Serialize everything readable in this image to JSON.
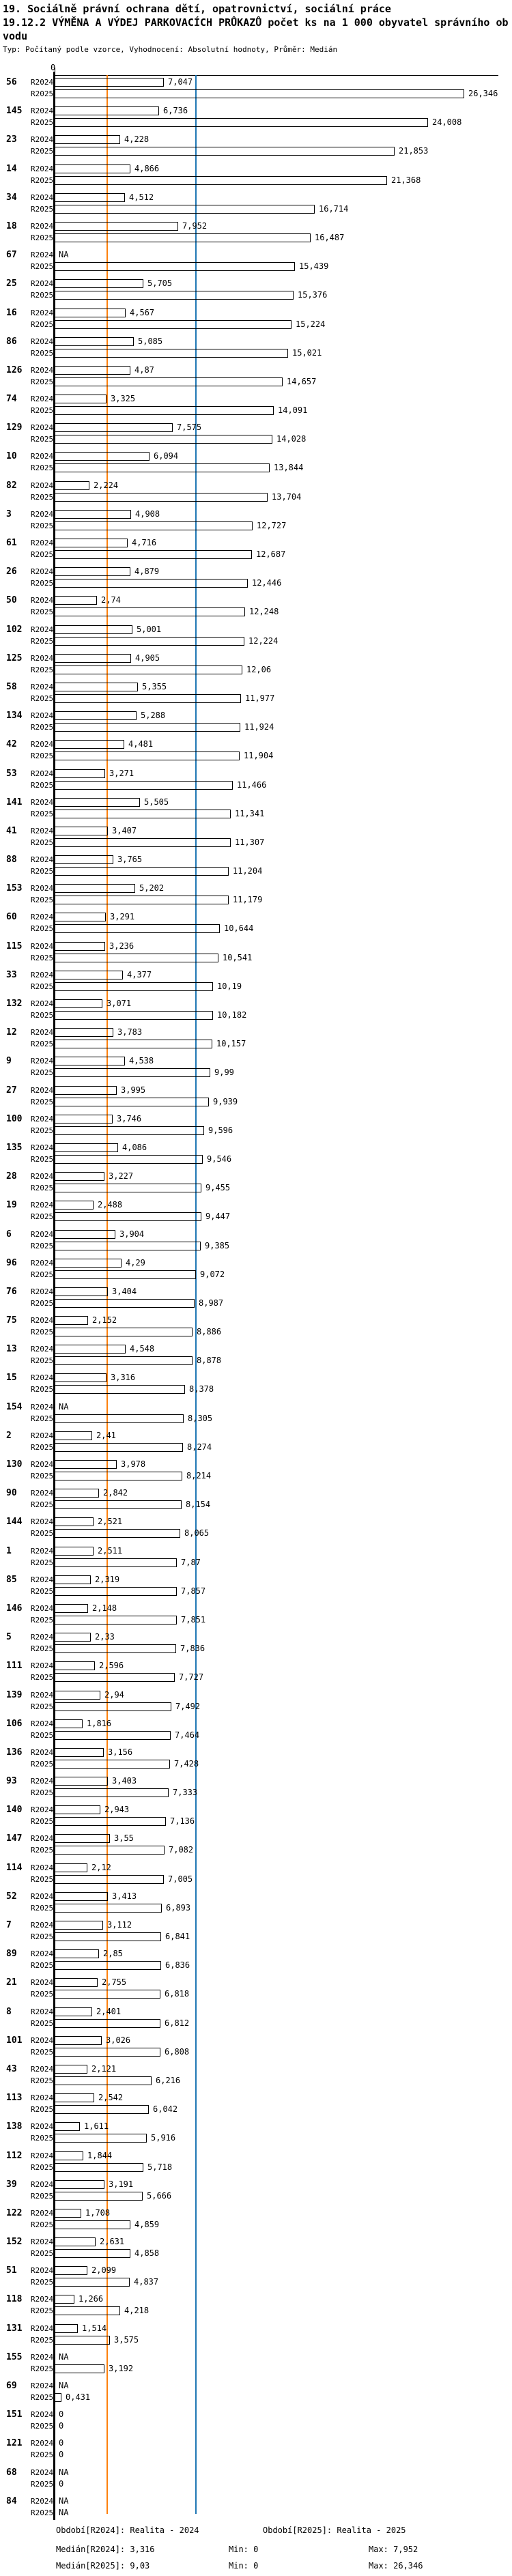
{
  "header": {
    "title_line1": "19. Sociálně právní ochrana dětí, opatrovnictví, sociální práce",
    "title_line2": "19.12.2 VÝMĚNA A VÝDEJ PARKOVACÍCH PRŮKAZŮ počet ks na 1 000 obyvatel správního obvodu",
    "meta": "Typ: Počítaný podle vzorce, Vyhodnocení: Absolutní hodnoty, Průměr: Medián"
  },
  "chart_data": {
    "type": "bar",
    "orientation": "horizontal",
    "axis_zero_label": "0",
    "xlim": [
      0,
      28.5
    ],
    "grid": "median-lines-only",
    "series_labels": [
      "R2024",
      "R2025"
    ],
    "colors": {
      "r2024": "#FD810D",
      "r2025": "#1F77B4"
    },
    "medians": {
      "r2024": 3.316,
      "r2025": 9.03
    },
    "na_text": "NA",
    "rows": [
      {
        "id": "56",
        "r2024": "7,047",
        "r2025": "26,346"
      },
      {
        "id": "145",
        "r2024": "6,736",
        "r2025": "24,008"
      },
      {
        "id": "23",
        "r2024": "4,228",
        "r2025": "21,853"
      },
      {
        "id": "14",
        "r2024": "4,866",
        "r2025": "21,368"
      },
      {
        "id": "34",
        "r2024": "4,512",
        "r2025": "16,714"
      },
      {
        "id": "18",
        "r2024": "7,952",
        "r2025": "16,487"
      },
      {
        "id": "67",
        "r2024": "NA",
        "r2025": "15,439"
      },
      {
        "id": "25",
        "r2024": "5,705",
        "r2025": "15,376"
      },
      {
        "id": "16",
        "r2024": "4,567",
        "r2025": "15,224"
      },
      {
        "id": "86",
        "r2024": "5,085",
        "r2025": "15,021"
      },
      {
        "id": "126",
        "r2024": "4,87",
        "r2025": "14,657"
      },
      {
        "id": "74",
        "r2024": "3,325",
        "r2025": "14,091"
      },
      {
        "id": "129",
        "r2024": "7,575",
        "r2025": "14,028"
      },
      {
        "id": "10",
        "r2024": "6,094",
        "r2025": "13,844"
      },
      {
        "id": "82",
        "r2024": "2,224",
        "r2025": "13,704"
      },
      {
        "id": "3",
        "r2024": "4,908",
        "r2025": "12,727"
      },
      {
        "id": "61",
        "r2024": "4,716",
        "r2025": "12,687"
      },
      {
        "id": "26",
        "r2024": "4,879",
        "r2025": "12,446"
      },
      {
        "id": "50",
        "r2024": "2,74",
        "r2025": "12,248"
      },
      {
        "id": "102",
        "r2024": "5,001",
        "r2025": "12,224"
      },
      {
        "id": "125",
        "r2024": "4,905",
        "r2025": "12,06"
      },
      {
        "id": "58",
        "r2024": "5,355",
        "r2025": "11,977"
      },
      {
        "id": "134",
        "r2024": "5,288",
        "r2025": "11,924"
      },
      {
        "id": "42",
        "r2024": "4,481",
        "r2025": "11,904"
      },
      {
        "id": "53",
        "r2024": "3,271",
        "r2025": "11,466"
      },
      {
        "id": "141",
        "r2024": "5,505",
        "r2025": "11,341"
      },
      {
        "id": "41",
        "r2024": "3,407",
        "r2025": "11,307"
      },
      {
        "id": "88",
        "r2024": "3,765",
        "r2025": "11,204"
      },
      {
        "id": "153",
        "r2024": "5,202",
        "r2025": "11,179"
      },
      {
        "id": "60",
        "r2024": "3,291",
        "r2025": "10,644"
      },
      {
        "id": "115",
        "r2024": "3,236",
        "r2025": "10,541"
      },
      {
        "id": "33",
        "r2024": "4,377",
        "r2025": "10,19"
      },
      {
        "id": "132",
        "r2024": "3,071",
        "r2025": "10,182"
      },
      {
        "id": "12",
        "r2024": "3,783",
        "r2025": "10,157"
      },
      {
        "id": "9",
        "r2024": "4,538",
        "r2025": "9,99"
      },
      {
        "id": "27",
        "r2024": "3,995",
        "r2025": "9,939"
      },
      {
        "id": "100",
        "r2024": "3,746",
        "r2025": "9,596"
      },
      {
        "id": "135",
        "r2024": "4,086",
        "r2025": "9,546"
      },
      {
        "id": "28",
        "r2024": "3,227",
        "r2025": "9,455"
      },
      {
        "id": "19",
        "r2024": "2,488",
        "r2025": "9,447"
      },
      {
        "id": "6",
        "r2024": "3,904",
        "r2025": "9,385"
      },
      {
        "id": "96",
        "r2024": "4,29",
        "r2025": "9,072"
      },
      {
        "id": "76",
        "r2024": "3,404",
        "r2025": "8,987"
      },
      {
        "id": "75",
        "r2024": "2,152",
        "r2025": "8,886"
      },
      {
        "id": "13",
        "r2024": "4,548",
        "r2025": "8,878"
      },
      {
        "id": "15",
        "r2024": "3,316",
        "r2025": "8,378"
      },
      {
        "id": "154",
        "r2024": "NA",
        "r2025": "8,305"
      },
      {
        "id": "2",
        "r2024": "2,41",
        "r2025": "8,274"
      },
      {
        "id": "130",
        "r2024": "3,978",
        "r2025": "8,214"
      },
      {
        "id": "90",
        "r2024": "2,842",
        "r2025": "8,154"
      },
      {
        "id": "144",
        "r2024": "2,521",
        "r2025": "8,065"
      },
      {
        "id": "1",
        "r2024": "2,511",
        "r2025": "7,87"
      },
      {
        "id": "85",
        "r2024": "2,319",
        "r2025": "7,857"
      },
      {
        "id": "146",
        "r2024": "2,148",
        "r2025": "7,851"
      },
      {
        "id": "5",
        "r2024": "2,33",
        "r2025": "7,836"
      },
      {
        "id": "111",
        "r2024": "2,596",
        "r2025": "7,727"
      },
      {
        "id": "139",
        "r2024": "2,94",
        "r2025": "7,492"
      },
      {
        "id": "106",
        "r2024": "1,816",
        "r2025": "7,464"
      },
      {
        "id": "136",
        "r2024": "3,156",
        "r2025": "7,428"
      },
      {
        "id": "93",
        "r2024": "3,403",
        "r2025": "7,333"
      },
      {
        "id": "140",
        "r2024": "2,943",
        "r2025": "7,136"
      },
      {
        "id": "147",
        "r2024": "3,55",
        "r2025": "7,082"
      },
      {
        "id": "114",
        "r2024": "2,12",
        "r2025": "7,005"
      },
      {
        "id": "52",
        "r2024": "3,413",
        "r2025": "6,893"
      },
      {
        "id": "7",
        "r2024": "3,112",
        "r2025": "6,841"
      },
      {
        "id": "89",
        "r2024": "2,85",
        "r2025": "6,836"
      },
      {
        "id": "21",
        "r2024": "2,755",
        "r2025": "6,818"
      },
      {
        "id": "8",
        "r2024": "2,401",
        "r2025": "6,812"
      },
      {
        "id": "101",
        "r2024": "3,026",
        "r2025": "6,808"
      },
      {
        "id": "43",
        "r2024": "2,121",
        "r2025": "6,216"
      },
      {
        "id": "113",
        "r2024": "2,542",
        "r2025": "6,042"
      },
      {
        "id": "138",
        "r2024": "1,611",
        "r2025": "5,916"
      },
      {
        "id": "112",
        "r2024": "1,844",
        "r2025": "5,718"
      },
      {
        "id": "39",
        "r2024": "3,191",
        "r2025": "5,666"
      },
      {
        "id": "122",
        "r2024": "1,708",
        "r2025": "4,859"
      },
      {
        "id": "152",
        "r2024": "2,631",
        "r2025": "4,858"
      },
      {
        "id": "51",
        "r2024": "2,099",
        "r2025": "4,837"
      },
      {
        "id": "118",
        "r2024": "1,266",
        "r2025": "4,218"
      },
      {
        "id": "131",
        "r2024": "1,514",
        "r2025": "3,575"
      },
      {
        "id": "155",
        "r2024": "NA",
        "r2025": "3,192"
      },
      {
        "id": "69",
        "r2024": "NA",
        "r2025": "0,431"
      },
      {
        "id": "151",
        "r2024": "0",
        "r2025": "0"
      },
      {
        "id": "121",
        "r2024": "0",
        "r2025": "0"
      },
      {
        "id": "68",
        "r2024": "NA",
        "r2025": "0"
      },
      {
        "id": "84",
        "r2024": "NA",
        "r2025": "NA"
      }
    ]
  },
  "footer": {
    "period_r2024": "Období[R2024]: Realita - 2024",
    "period_r2025": "Období[R2025]: Realita - 2025",
    "median_r2024": "Medián[R2024]: 3,316",
    "min_r2024": "Min: 0",
    "max_r2024": "Max: 7,952",
    "median_r2025": "Medián[R2025]: 9,03",
    "min_r2025": "Min: 0",
    "max_r2025": "Max: 26,346"
  }
}
